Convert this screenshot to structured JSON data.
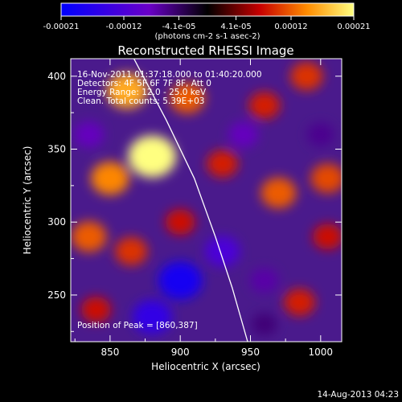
{
  "chart_data": {
    "type": "heatmap",
    "title": "Reconstructed RHESSI Image",
    "xlabel": "Heliocentric X (arcsec)",
    "ylabel": "Heliocentric Y (arcsec)",
    "xlim": [
      822,
      1015
    ],
    "ylim": [
      218,
      412
    ],
    "x_ticks": [
      850,
      900,
      950,
      1000
    ],
    "y_ticks": [
      250,
      300,
      350,
      400
    ],
    "colorbar": {
      "range": [
        -0.00021,
        0.00021
      ],
      "tick_values": [
        -0.00021,
        -0.00012,
        -4.1e-05,
        4.1e-05,
        0.00012,
        0.00021
      ],
      "tick_labels": [
        "-0.00021",
        "-0.00012",
        "-4.1e-05",
        "4.1e-05",
        "0.00012",
        "0.00021"
      ],
      "unit_label": "(photons cm-2 s-1 asec-2)",
      "colors": [
        "#0000ff",
        "#6a00c8",
        "#000000",
        "#c80000",
        "#ff8c00",
        "#ffff80"
      ]
    },
    "annotations": [
      "16-Nov-2011 01:37:18.000 to 01:40:20.000",
      "Detectors: 4F 5F 6F 7F 8F, Att 0",
      "Energy Range: 12.0 - 25.0 keV",
      "Clean. Total counts: 5.39E+03"
    ],
    "peak_label": "Position of Peak = [860,387]",
    "peak": {
      "x": 860,
      "y": 387
    },
    "limb_curve": [
      [
        867,
        412
      ],
      [
        890,
        370
      ],
      [
        910,
        330
      ],
      [
        925,
        290
      ],
      [
        937,
        255
      ],
      [
        948,
        218
      ]
    ],
    "bright_sources": [
      {
        "x": 880,
        "y": 345,
        "value": 0.00021
      },
      {
        "x": 862,
        "y": 390,
        "value": 0.00016
      },
      {
        "x": 850,
        "y": 330,
        "value": 0.00014
      },
      {
        "x": 835,
        "y": 290,
        "value": 0.00012
      },
      {
        "x": 865,
        "y": 280,
        "value": 0.0001
      },
      {
        "x": 905,
        "y": 385,
        "value": 0.00012
      },
      {
        "x": 960,
        "y": 380,
        "value": 9e-05
      },
      {
        "x": 990,
        "y": 400,
        "value": 0.0001
      },
      {
        "x": 970,
        "y": 320,
        "value": 0.00012
      },
      {
        "x": 1005,
        "y": 330,
        "value": 0.00011
      },
      {
        "x": 930,
        "y": 340,
        "value": 9e-05
      },
      {
        "x": 900,
        "y": 300,
        "value": 8e-05
      },
      {
        "x": 985,
        "y": 245,
        "value": 9e-05
      },
      {
        "x": 840,
        "y": 240,
        "value": 8e-05
      },
      {
        "x": 1005,
        "y": 290,
        "value": 8e-05
      }
    ],
    "dark_sources": [
      {
        "x": 900,
        "y": 260,
        "value": -0.00018
      },
      {
        "x": 880,
        "y": 235,
        "value": -0.00015
      },
      {
        "x": 930,
        "y": 280,
        "value": -0.00012
      },
      {
        "x": 835,
        "y": 360,
        "value": -8e-05
      },
      {
        "x": 945,
        "y": 360,
        "value": -8e-05
      },
      {
        "x": 960,
        "y": 260,
        "value": -7e-05
      },
      {
        "x": 1000,
        "y": 360,
        "value": -6e-05
      },
      {
        "x": 960,
        "y": 230,
        "value": -5e-05
      }
    ]
  },
  "footer": {
    "date": "14-Aug-2013 04:23"
  }
}
